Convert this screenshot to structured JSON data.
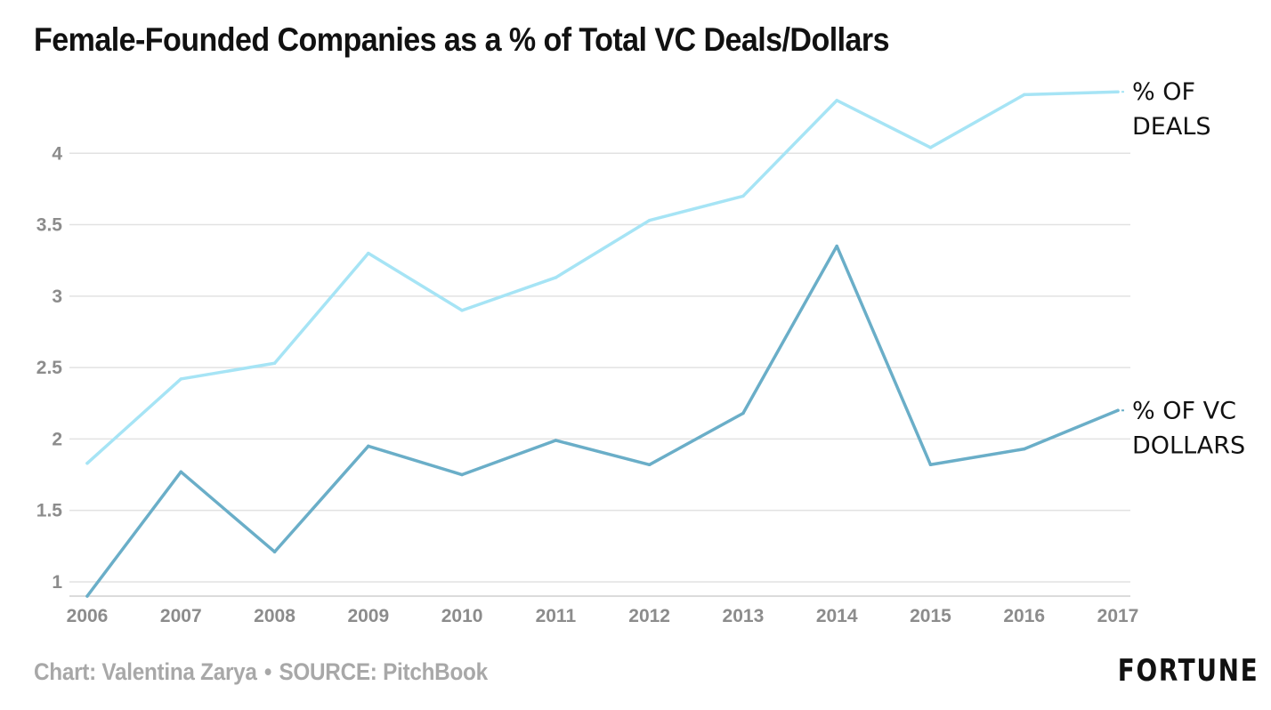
{
  "title": "Female-Founded Companies as a % of Total VC Deals/Dollars",
  "credit": {
    "chart_by": "Chart: Valentina Zarya",
    "separator": "•",
    "source": "SOURCE: PitchBook"
  },
  "logo": "FORTUNE",
  "chart_data": {
    "type": "line",
    "title": "Female-Founded Companies as a % of Total VC Deals/Dollars",
    "xlabel": "",
    "ylabel": "",
    "x": [
      2006,
      2007,
      2008,
      2009,
      2010,
      2011,
      2012,
      2013,
      2014,
      2015,
      2016,
      2017
    ],
    "ylim": [
      0.9,
      4.45
    ],
    "yticks": [
      1,
      1.5,
      2,
      2.5,
      3,
      3.5,
      4
    ],
    "grid": "horizontal",
    "series": [
      {
        "name": "% OF DEALS",
        "label_lines": [
          "% OF",
          "DEALS"
        ],
        "color": "#a6e4f5",
        "values": [
          1.83,
          2.42,
          2.53,
          3.3,
          2.9,
          3.13,
          3.53,
          3.7,
          4.37,
          4.04,
          4.41,
          4.43
        ]
      },
      {
        "name": "% OF VC DOLLARS",
        "label_lines": [
          "% OF VC",
          "DOLLARS"
        ],
        "color": "#6aaec8",
        "values": [
          0.9,
          1.77,
          1.21,
          1.95,
          1.75,
          1.99,
          1.82,
          2.18,
          3.35,
          1.82,
          1.93,
          2.2
        ]
      }
    ]
  }
}
